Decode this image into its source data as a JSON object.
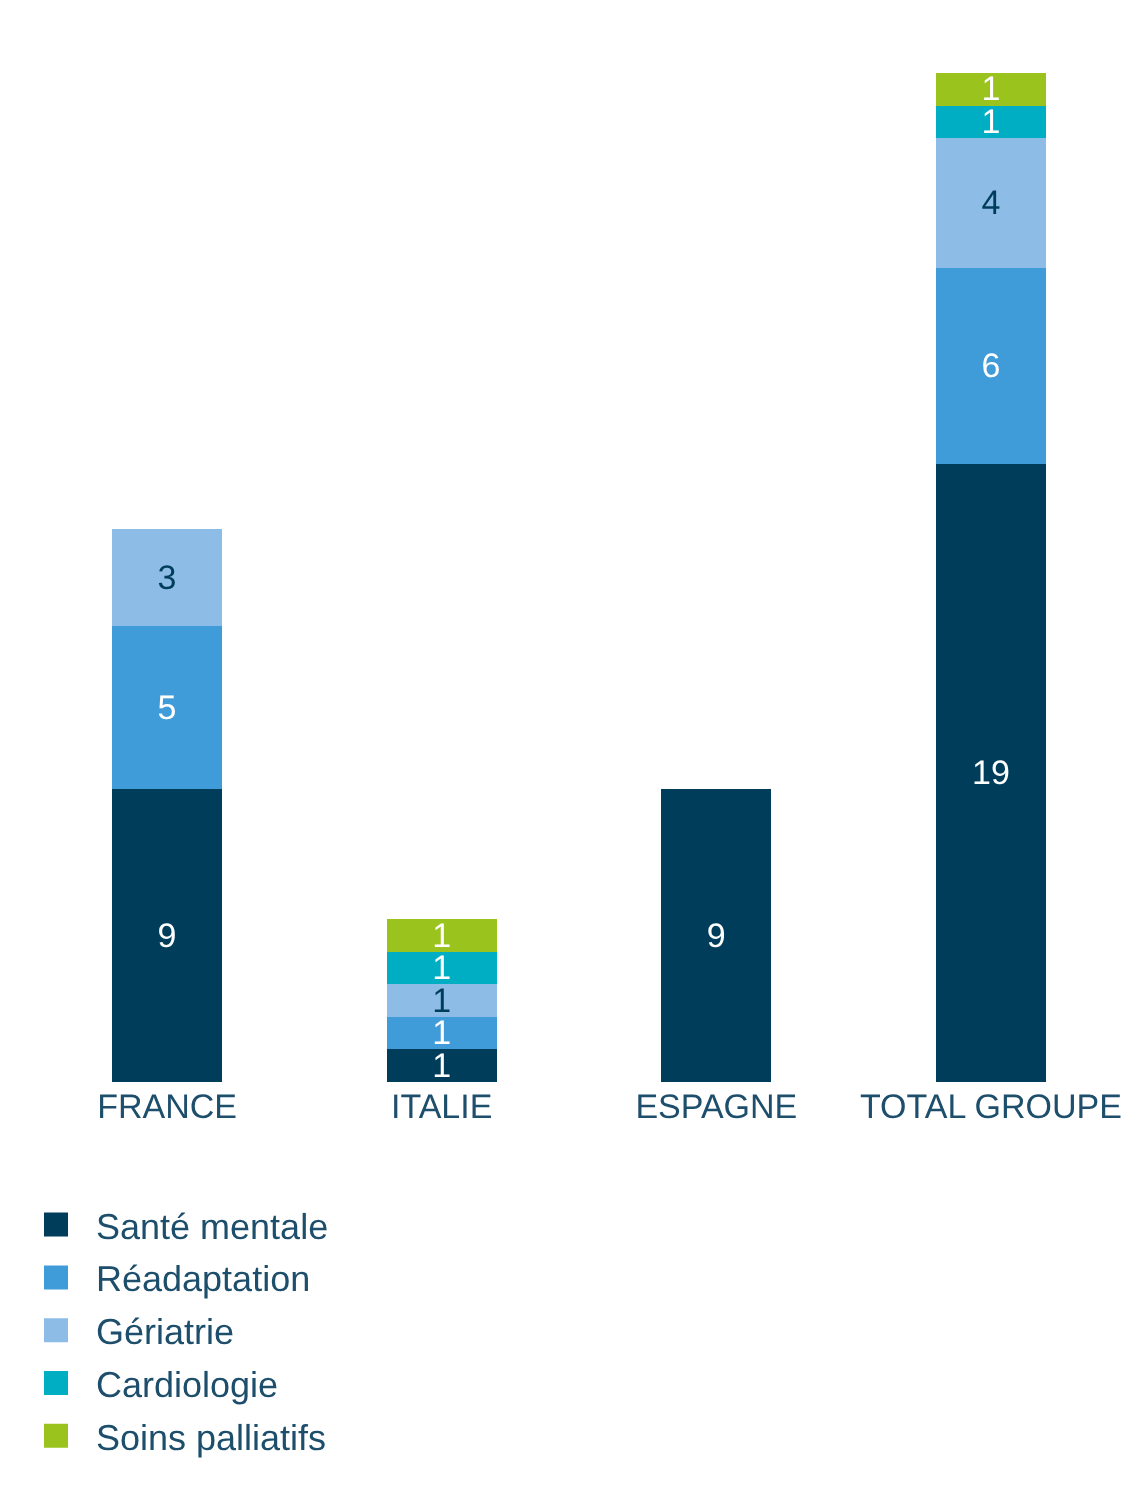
{
  "chart_data": {
    "type": "bar",
    "stacked": true,
    "data_labels": true,
    "legend": "bottom left",
    "categories": [
      "FRANCE",
      "ITALIE",
      "ESPAGNE",
      "TOTAL GROUPE"
    ],
    "series": [
      {
        "name": "Santé mentale",
        "color": "#003d5b",
        "values": [
          9,
          1,
          9,
          19
        ]
      },
      {
        "name": "Réadaptation",
        "color": "#409cd8",
        "values": [
          5,
          1,
          null,
          6
        ]
      },
      {
        "name": "Gériatrie",
        "color": "#8dbde6",
        "values": [
          3,
          1,
          null,
          4
        ]
      },
      {
        "name": "Cardiologie",
        "color": "#00aec3",
        "values": [
          null,
          1,
          null,
          1
        ]
      },
      {
        "name": "Soins palliatifs",
        "color": "#9bc31d",
        "values": [
          null,
          1,
          null,
          1
        ]
      }
    ]
  }
}
